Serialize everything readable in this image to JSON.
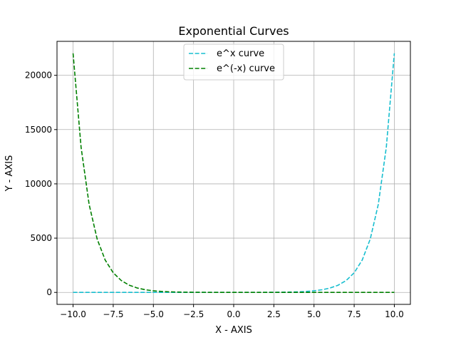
{
  "chart_data": {
    "type": "line",
    "title": "Exponential Curves",
    "xlabel": "X - AXIS",
    "ylabel": "Y - AXIS",
    "xlim": [
      -11.0,
      11.0
    ],
    "ylim": [
      -1101.32,
      23127.79
    ],
    "x_ticks": [
      -10,
      -7.5,
      -5,
      -2.5,
      0,
      2.5,
      5,
      7.5,
      10
    ],
    "x_tick_labels": [
      "−10.0",
      "−7.5",
      "−5.0",
      "−2.5",
      "0.0",
      "2.5",
      "5.0",
      "7.5",
      "10.0"
    ],
    "y_ticks": [
      0,
      5000,
      10000,
      15000,
      20000
    ],
    "y_tick_labels": [
      "0",
      "5000",
      "10000",
      "15000",
      "20000"
    ],
    "grid": true,
    "legend_position": "upper center",
    "x": [
      -10,
      -9.5,
      -9,
      -8.5,
      -8,
      -7.5,
      -7,
      -6.5,
      -6,
      -5.5,
      -5,
      -4.5,
      -4,
      -3.5,
      -3,
      -2.5,
      -2,
      -1.5,
      -1,
      -0.5,
      0,
      0.5,
      1,
      1.5,
      2,
      2.5,
      3,
      3.5,
      4,
      4.5,
      5,
      5.5,
      6,
      6.5,
      7,
      7.5,
      8,
      8.5,
      9,
      9.5,
      10
    ],
    "series": [
      {
        "name": "e^x curve",
        "color": "#17becf",
        "line_style": "dashed",
        "values": [
          5e-05,
          7e-05,
          0.00012,
          0.0002,
          0.00034,
          0.00055,
          0.00091,
          0.0015,
          0.0025,
          0.0041,
          0.0067,
          0.0111,
          0.0183,
          0.0302,
          0.0498,
          0.0821,
          0.1353,
          0.2231,
          0.3679,
          0.6065,
          1,
          1.6487,
          2.7183,
          4.4817,
          7.3891,
          12.1825,
          20.0855,
          33.1155,
          54.5982,
          90.0171,
          148.4132,
          244.6919,
          403.4288,
          665.1416,
          1096.6332,
          1808.0424,
          2980.958,
          4914.7688,
          8103.0839,
          13359.7268,
          22026.4658
        ]
      },
      {
        "name": "e^(-x) curve",
        "color": "#008000",
        "line_style": "dashed",
        "values": [
          22026.4658,
          13359.7268,
          8103.0839,
          4914.7688,
          2980.958,
          1808.0424,
          1096.6332,
          665.1416,
          403.4288,
          244.6919,
          148.4132,
          90.0171,
          54.5982,
          33.1155,
          20.0855,
          12.1825,
          7.3891,
          4.4817,
          2.7183,
          1.6487,
          1,
          0.6065,
          0.3679,
          0.2231,
          0.1353,
          0.0821,
          0.0498,
          0.0302,
          0.0183,
          0.0111,
          0.0067,
          0.0041,
          0.0025,
          0.0015,
          0.00091,
          0.00055,
          0.00034,
          0.0002,
          0.00012,
          7e-05,
          5e-05
        ]
      }
    ]
  }
}
